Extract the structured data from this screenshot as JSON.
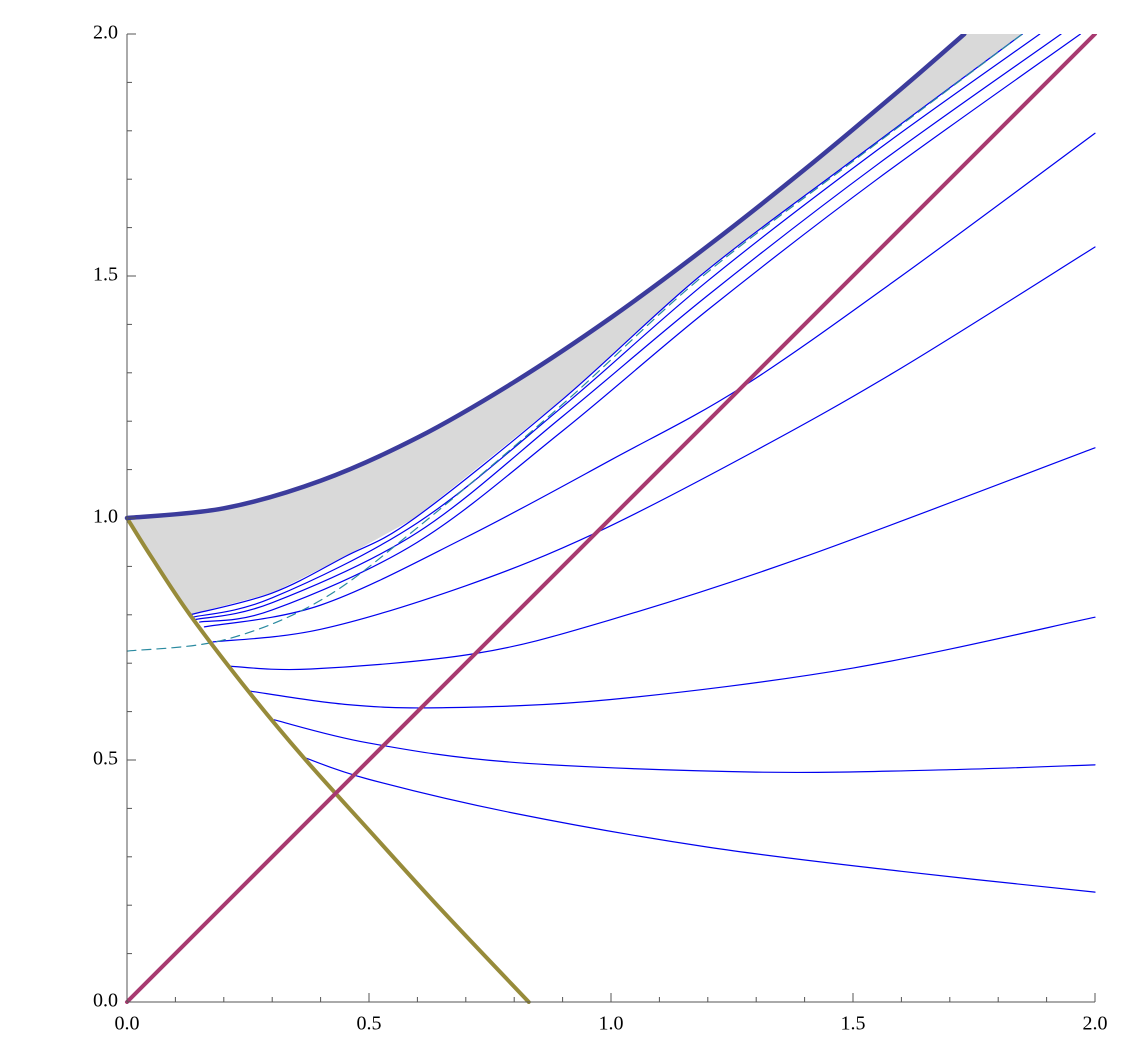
{
  "chart_data": {
    "type": "line",
    "xlim": [
      0,
      2
    ],
    "ylim": [
      0,
      2
    ],
    "xticks": [
      {
        "value": 0,
        "label": "0.0"
      },
      {
        "value": 0.5,
        "label": "0.5"
      },
      {
        "value": 1,
        "label": "1.0"
      },
      {
        "value": 1.5,
        "label": "1.5"
      },
      {
        "value": 2,
        "label": "2.0"
      }
    ],
    "yticks": [
      {
        "value": 0,
        "label": "0.0"
      },
      {
        "value": 0.5,
        "label": "0.5"
      },
      {
        "value": 1,
        "label": "1.0"
      },
      {
        "value": 1.5,
        "label": "1.5"
      },
      {
        "value": 2,
        "label": "2.0"
      }
    ],
    "xminorticks": [
      0.1,
      0.2,
      0.3,
      0.4,
      0.6,
      0.7,
      0.8,
      0.9,
      1.1,
      1.2,
      1.3,
      1.4,
      1.6,
      1.7,
      1.8,
      1.9
    ],
    "yminorticks": [
      0.1,
      0.2,
      0.3,
      0.4,
      0.6,
      0.7,
      0.8,
      0.9,
      1.1,
      1.2,
      1.3,
      1.4,
      1.6,
      1.7,
      1.8,
      1.9
    ],
    "region": {
      "color": "#d9d9d9",
      "x": [
        0,
        0.2,
        0.4,
        0.6,
        0.8,
        1.0,
        1.2,
        1.4,
        1.6,
        1.73,
        1.85,
        1.5,
        1.184,
        0.9,
        0.595,
        0.45,
        0.3,
        0.13,
        0.05
      ],
      "values": [
        1,
        1.02,
        1.077,
        1.166,
        1.281,
        1.414,
        1.562,
        1.72,
        1.887,
        2,
        2,
        1.74,
        1.5,
        1.245,
        1.0,
        0.92,
        0.845,
        0.8,
        0.92
      ]
    },
    "series": [
      {
        "color": "#0000ee",
        "line_width": 1.2,
        "x": [
          0.13,
          0.3,
          0.45,
          0.595,
          0.9,
          1.184,
          1.5,
          1.85
        ],
        "values": [
          0.8,
          0.845,
          0.92,
          1.0,
          1.245,
          1.5,
          1.74,
          2
        ]
      },
      {
        "color": "#0000ee",
        "line_width": 1.2,
        "x": [
          0.135,
          0.3,
          0.6,
          0.9,
          1.2,
          1.55,
          1.886
        ],
        "values": [
          0.795,
          0.835,
          0.99,
          1.23,
          1.49,
          1.76,
          2
        ]
      },
      {
        "color": "#0000ee",
        "line_width": 1.2,
        "x": [
          0.14,
          0.3,
          0.6,
          0.9,
          1.2,
          1.55,
          1.93
        ],
        "values": [
          0.79,
          0.825,
          0.97,
          1.21,
          1.46,
          1.73,
          2
        ]
      },
      {
        "color": "#0000ee",
        "line_width": 1.2,
        "x": [
          0.15,
          0.3,
          0.6,
          0.9,
          1.2,
          1.55,
          1.97
        ],
        "values": [
          0.785,
          0.81,
          0.95,
          1.18,
          1.43,
          1.7,
          2
        ]
      },
      {
        "color": "#0000ee",
        "line_width": 1.2,
        "x": [
          0.16,
          0.4,
          0.7,
          1.0,
          1.27,
          1.6,
          2.0
        ],
        "values": [
          0.775,
          0.82,
          0.96,
          1.12,
          1.27,
          1.5,
          1.795
        ]
      },
      {
        "color": "#0000ee",
        "line_width": 1.2,
        "x": [
          0.178,
          0.4,
          0.7,
          0.97,
          1.3,
          1.6,
          2.0
        ],
        "values": [
          0.744,
          0.77,
          0.86,
          0.97,
          1.14,
          1.31,
          1.56
        ]
      },
      {
        "color": "#0000ee",
        "line_width": 1.2,
        "x": [
          0.209,
          0.38,
          0.72,
          1.0,
          1.4,
          2.0
        ],
        "values": [
          0.694,
          0.688,
          0.72,
          0.79,
          0.92,
          1.145
        ]
      },
      {
        "color": "#0000ee",
        "line_width": 1.2,
        "x": [
          0.25,
          0.45,
          0.65,
          1.0,
          1.5,
          2.0
        ],
        "values": [
          0.643,
          0.615,
          0.608,
          0.625,
          0.69,
          0.795
        ]
      },
      {
        "color": "#0000ee",
        "line_width": 1.2,
        "x": [
          0.304,
          0.5,
          0.8,
          1.3,
          1.7,
          2.0
        ],
        "values": [
          0.583,
          0.535,
          0.495,
          0.475,
          0.48,
          0.49
        ]
      },
      {
        "color": "#0000ee",
        "line_width": 1.2,
        "x": [
          0.364,
          0.5,
          0.8,
          1.2,
          1.6,
          2.0
        ],
        "values": [
          0.506,
          0.46,
          0.39,
          0.32,
          0.27,
          0.227
        ]
      },
      {
        "color": "#2a8aa0",
        "line_width": 1.2,
        "dash": true,
        "x": [
          0,
          0.2,
          0.4,
          0.6,
          0.9,
          1.184,
          1.5,
          1.85
        ],
        "values": [
          0.725,
          0.748,
          0.83,
          0.98,
          1.235,
          1.495,
          1.737,
          2
        ]
      },
      {
        "color": "#978b3a",
        "line_width": 4,
        "x": [
          0,
          0.05,
          0.13,
          0.25,
          0.364,
          0.5,
          0.65,
          0.83
        ],
        "values": [
          1,
          0.92,
          0.8,
          0.643,
          0.506,
          0.355,
          0.19,
          0
        ]
      },
      {
        "color": "#a83a70",
        "line_width": 4,
        "x": [
          0,
          2
        ],
        "values": [
          0,
          2
        ]
      },
      {
        "color": "#3c3c9c",
        "line_width": 4.5,
        "x": [
          0,
          0.2,
          0.4,
          0.6,
          0.8,
          1.0,
          1.2,
          1.4,
          1.6,
          1.73
        ],
        "values": [
          1,
          1.02,
          1.077,
          1.166,
          1.281,
          1.414,
          1.562,
          1.72,
          1.887,
          2
        ]
      }
    ]
  }
}
